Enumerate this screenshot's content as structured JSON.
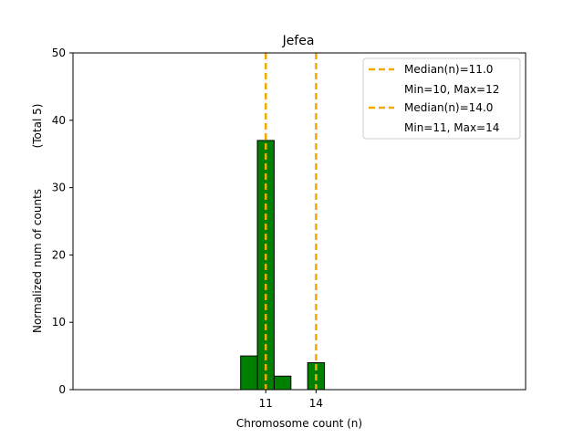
{
  "chart_data": {
    "type": "bar",
    "title": "Jefea",
    "xlabel": "Chromosome count (n)",
    "ylabel": "Normalized num of counts",
    "ylabel_secondary": "(Total 5)",
    "ylim": [
      0,
      50
    ],
    "xlim": [
      -0.5,
      26.5
    ],
    "y_ticks": [
      0,
      10,
      20,
      30,
      40,
      50
    ],
    "x_ticks": [
      11,
      14
    ],
    "grid": false,
    "legend_position": "top-right",
    "bars": [
      {
        "x": 10,
        "value": 5
      },
      {
        "x": 11,
        "value": 37
      },
      {
        "x": 12,
        "value": 2
      },
      {
        "x": 14,
        "value": 4
      }
    ],
    "bar_color": "#008000",
    "bar_edge_color": "#000000",
    "reference_lines": [
      {
        "x": 11,
        "color": "#F2A900",
        "style": "dashed",
        "label": "Median(n)=11.0",
        "sublabel": "Min=10, Max=12"
      },
      {
        "x": 14,
        "color": "#F2A900",
        "style": "dashed",
        "label": "Median(n)=14.0",
        "sublabel": "Min=11, Max=14"
      }
    ]
  }
}
